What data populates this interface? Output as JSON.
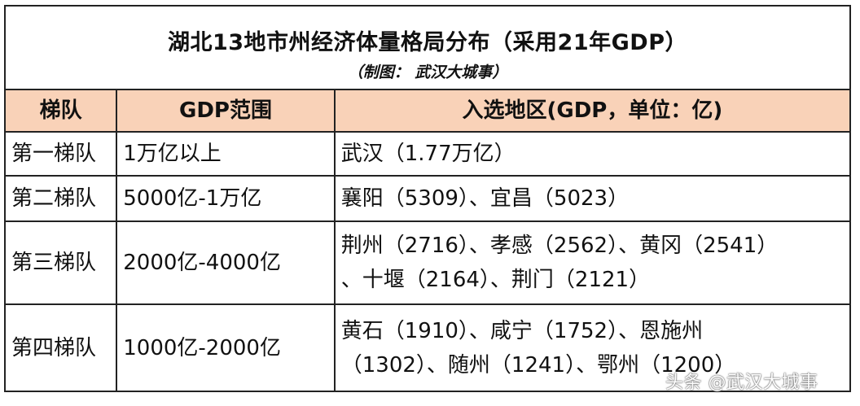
{
  "title": "湖北13地市州经济体量格局分布（采用21年GDP）",
  "subtitle": "（制图： 武汉大城事）",
  "headers": [
    "梯队",
    "GDP范围",
    "入选地区(GDP，单位：亿)"
  ],
  "rows": [
    {
      "tier": "第一梯队",
      "range": "1万亿以上",
      "regions": [
        "武汉（1.77万亿）"
      ]
    },
    {
      "tier": "第二梯队",
      "range": "5000亿-1万亿",
      "regions": [
        "襄阳（5309）、宜昌（5023）"
      ]
    },
    {
      "tier": "第三梯队",
      "range": "2000亿-4000亿",
      "regions": [
        "荆州（2716）、孝感（2562）、黄冈（2541）",
        "、十堰（2164）、荆门（2121）"
      ]
    },
    {
      "tier": "第四梯队",
      "range": "1000亿-2000亿",
      "regions": [
        "黄石（1910）、咸宁（1752）、恩施州",
        "（1302）、随州（1241）、鄂州（1200）"
      ]
    }
  ],
  "watermark": "头条 @武汉大城事",
  "colors": {
    "header_bg": "#f9d2b8",
    "border": "#222222"
  }
}
